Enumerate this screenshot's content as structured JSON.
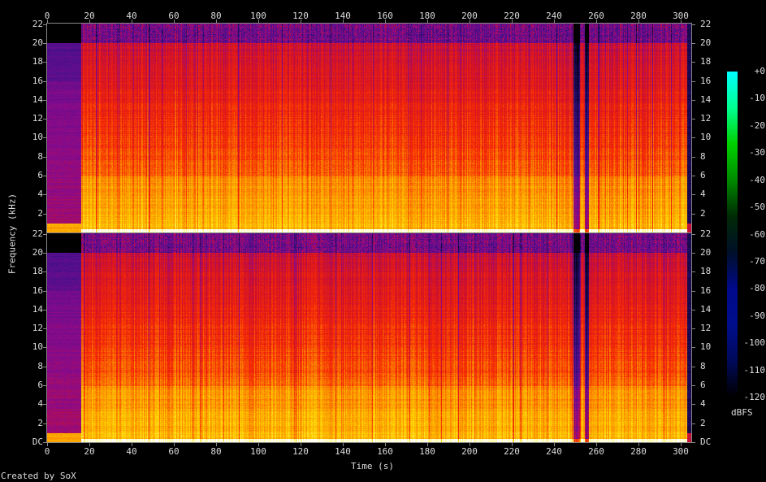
{
  "chart_data": {
    "type": "heatmap",
    "subtype": "spectrogram",
    "channels": 2,
    "xlabel": "Time (s)",
    "ylabel": "Frequency (kHz)",
    "xlim": [
      0,
      305
    ],
    "ylim_khz": [
      0,
      22.05
    ],
    "x_ticks": [
      "0",
      "20",
      "40",
      "60",
      "80",
      "100",
      "120",
      "140",
      "160",
      "180",
      "200",
      "220",
      "240",
      "260",
      "280",
      "300"
    ],
    "y_ticks_top": [
      "22",
      "20",
      "18",
      "16",
      "14",
      "12",
      "10",
      "8",
      "6",
      "4",
      "2"
    ],
    "y_ticks_bottom": [
      "22",
      "20",
      "18",
      "16",
      "14",
      "12",
      "10",
      "8",
      "6",
      "4",
      "2",
      "DC"
    ],
    "colorbar": {
      "label": "dBFS",
      "range": [
        -120,
        0
      ],
      "ticks": [
        "+0",
        "-10",
        "-20",
        "-30",
        "-40",
        "-50",
        "-60",
        "-70",
        "-80",
        "-90",
        "-100",
        "-110",
        "-120"
      ],
      "colors": [
        "#000000",
        "#1a0a5a",
        "#4b0f8c",
        "#8a0a8a",
        "#d0102a",
        "#f52a05",
        "#fb8a00",
        "#fdd000",
        "#ffff90",
        "#ffffff"
      ]
    },
    "segments": [
      {
        "start_s": 0,
        "end_s": 16,
        "description_level_dbfs": -85
      },
      {
        "start_s": 16,
        "end_s": 303,
        "description_level_dbfs": -45
      },
      {
        "start_s": 303,
        "end_s": 305,
        "description_level_dbfs": -110
      }
    ],
    "lowpass_cutoff_khz": 20
  },
  "footer": {
    "credit": "Created by SoX"
  }
}
